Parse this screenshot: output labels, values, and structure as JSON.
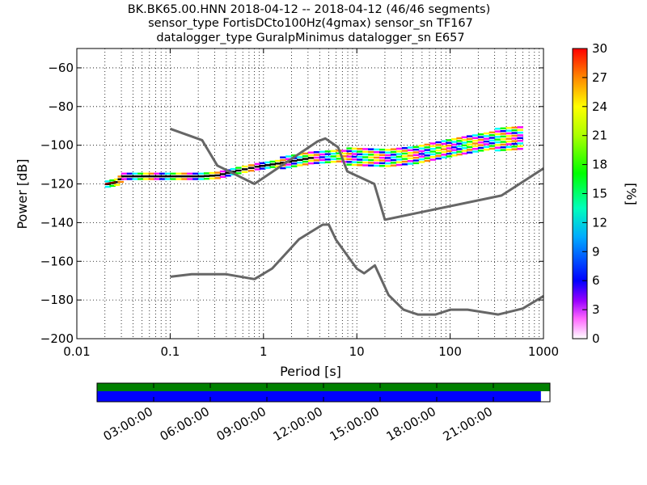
{
  "header": {
    "title_line1": "BK.BK65.00.HNN   2018-04-12 -- 2018-04-12  (46/46 segments)",
    "title_line2": "sensor_type FortisDCto100Hz(4gmax) sensor_sn TF167",
    "title_line3": "datalogger_type GuralpMinimus datalogger_sn E657"
  },
  "chart_data": {
    "type": "heatmap",
    "xlabel": "Period [s]",
    "ylabel": "Power [dB]",
    "xscale": "log",
    "xlim": [
      0.01,
      1000
    ],
    "ylim": [
      -200,
      -50
    ],
    "grid": true,
    "x_ticks": [
      {
        "value": 0.01,
        "label": "0.01"
      },
      {
        "value": 0.1,
        "label": "0.1"
      },
      {
        "value": 1,
        "label": "1"
      },
      {
        "value": 10,
        "label": "10"
      },
      {
        "value": 100,
        "label": "100"
      },
      {
        "value": 1000,
        "label": "1000"
      }
    ],
    "y_ticks": [
      {
        "value": -60,
        "label": "−60"
      },
      {
        "value": -80,
        "label": "−80"
      },
      {
        "value": -100,
        "label": "−100"
      },
      {
        "value": -120,
        "label": "−120"
      },
      {
        "value": -140,
        "label": "−140"
      },
      {
        "value": -160,
        "label": "−160"
      },
      {
        "value": -180,
        "label": "−180"
      },
      {
        "value": -200,
        "label": "−200"
      }
    ],
    "ppsd_band": [
      {
        "period": 0.02,
        "db": -120,
        "spread": 1
      },
      {
        "period": 0.025,
        "db": -119,
        "spread": 1
      },
      {
        "period": 0.03,
        "db": -116,
        "spread": 1
      },
      {
        "period": 0.1,
        "db": -116,
        "spread": 1
      },
      {
        "period": 0.2,
        "db": -116,
        "spread": 1
      },
      {
        "period": 0.3,
        "db": -115.5,
        "spread": 1
      },
      {
        "period": 0.5,
        "db": -113,
        "spread": 1
      },
      {
        "period": 0.8,
        "db": -111,
        "spread": 1
      },
      {
        "period": 1.5,
        "db": -109,
        "spread": 1.5
      },
      {
        "period": 3,
        "db": -106.5,
        "spread": 1.5
      },
      {
        "period": 6,
        "db": -105.5,
        "spread": 2
      },
      {
        "period": 10,
        "db": -106,
        "spread": 3
      },
      {
        "period": 20,
        "db": -106.5,
        "spread": 3
      },
      {
        "period": 40,
        "db": -105,
        "spread": 3
      },
      {
        "period": 80,
        "db": -102,
        "spread": 3
      },
      {
        "period": 150,
        "db": -99.5,
        "spread": 3
      },
      {
        "period": 300,
        "db": -97,
        "spread": 3.5
      },
      {
        "period": 600,
        "db": -96,
        "spread": 4
      }
    ],
    "nhnm": [
      [
        0.1,
        -91.5
      ],
      [
        0.22,
        -97.4
      ],
      [
        0.32,
        -110.5
      ],
      [
        0.8,
        -120
      ],
      [
        3.8,
        -98
      ],
      [
        4.6,
        -96.5
      ],
      [
        6.3,
        -101
      ],
      [
        7.9,
        -113.5
      ],
      [
        15.4,
        -120
      ],
      [
        20,
        -138.5
      ],
      [
        354.8,
        -126
      ],
      [
        1000,
        -112
      ]
    ],
    "nlnm": [
      [
        0.1,
        -168
      ],
      [
        0.17,
        -166.7
      ],
      [
        0.4,
        -166.7
      ],
      [
        0.8,
        -169.2
      ],
      [
        1.24,
        -163.7
      ],
      [
        2.4,
        -148.6
      ],
      [
        4.3,
        -141.1
      ],
      [
        5,
        -141
      ],
      [
        6,
        -149
      ],
      [
        10,
        -163.8
      ],
      [
        12,
        -166.2
      ],
      [
        15.6,
        -162.1
      ],
      [
        21.9,
        -177.5
      ],
      [
        31.6,
        -185
      ],
      [
        45,
        -187.5
      ],
      [
        70,
        -187.5
      ],
      [
        101,
        -185
      ],
      [
        154,
        -185
      ],
      [
        328,
        -187.5
      ],
      [
        600,
        -184.4
      ],
      [
        1000,
        -178
      ]
    ],
    "colorbar": {
      "label": "[%]",
      "range": [
        0,
        30
      ],
      "ticks": [
        "0",
        "3",
        "6",
        "9",
        "12",
        "15",
        "18",
        "21",
        "24",
        "27",
        "30"
      ]
    },
    "timeline": {
      "tick_labels": [
        "03:00:00",
        "06:00:00",
        "09:00:00",
        "12:00:00",
        "15:00:00",
        "18:00:00",
        "21:00:00"
      ],
      "data_coverage_fraction": 0.98,
      "colors": {
        "coverage": "#0000ff",
        "segments": "#008000"
      }
    }
  }
}
